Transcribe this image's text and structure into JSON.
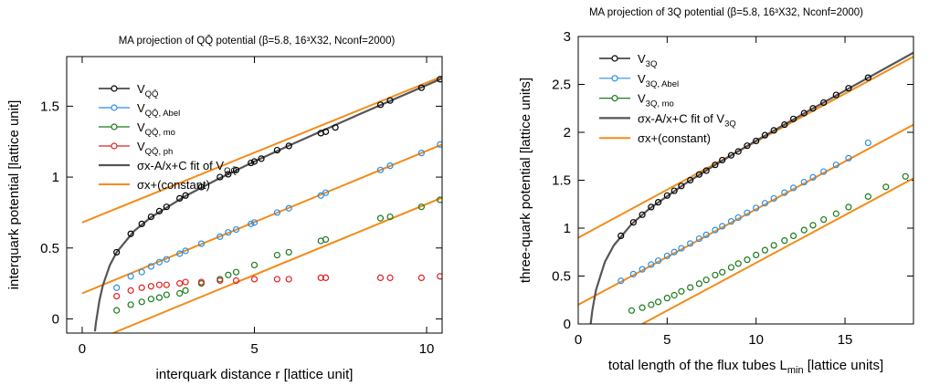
{
  "chart_data": [
    {
      "type": "scatter",
      "title": "MA projection of QQ̄ potential (β=5.8, 16³X32, Nconf=2000)",
      "xlabel": "interquark distance r [lattice unit]",
      "ylabel": "interquark potential [lattice unit]",
      "xlim": [
        -0.45,
        10.45
      ],
      "ylim": [
        -0.1,
        1.85
      ],
      "xticks": [
        0,
        5,
        10
      ],
      "yticks": [
        0,
        0.5,
        1,
        1.5
      ],
      "legend": "upper left",
      "series": [
        {
          "name": "V",
          "subscript": "QQ̄",
          "color": "#000000",
          "x": [
            1,
            1.41,
            1.73,
            2,
            2.24,
            2.45,
            2.83,
            3,
            3.46,
            4,
            4.24,
            4.47,
            4.9,
            5,
            5.2,
            5.66,
            6,
            6.93,
            7.07,
            7.35,
            8.66,
            8.94,
            9.85,
            10.39
          ],
          "values": [
            0.47,
            0.6,
            0.67,
            0.72,
            0.76,
            0.79,
            0.85,
            0.87,
            0.93,
            1.0,
            1.02,
            1.05,
            1.1,
            1.11,
            1.13,
            1.19,
            1.22,
            1.31,
            1.32,
            1.35,
            1.51,
            1.54,
            1.63,
            1.69
          ]
        },
        {
          "name": "V",
          "subscript": "QQ̄, Abel",
          "color": "#2a8ee8",
          "x": [
            1,
            1.41,
            1.73,
            2,
            2.24,
            2.45,
            2.83,
            3,
            3.46,
            4,
            4.24,
            4.47,
            4.9,
            5,
            5.66,
            6,
            6.93,
            7.07,
            8.66,
            8.94,
            9.85,
            10.39
          ],
          "values": [
            0.22,
            0.3,
            0.33,
            0.37,
            0.4,
            0.42,
            0.46,
            0.48,
            0.53,
            0.58,
            0.61,
            0.63,
            0.67,
            0.68,
            0.75,
            0.78,
            0.87,
            0.89,
            1.05,
            1.08,
            1.17,
            1.23
          ]
        },
        {
          "name": "V",
          "subscript": "QQ̄, mo",
          "color": "#1a7a1a",
          "x": [
            1,
            1.41,
            1.73,
            2,
            2.24,
            2.45,
            2.83,
            3,
            3.46,
            4,
            4.24,
            4.47,
            5,
            5.66,
            6,
            6.93,
            7.07,
            8.66,
            8.94,
            9.85,
            10.39
          ],
          "values": [
            0.06,
            0.1,
            0.12,
            0.14,
            0.15,
            0.17,
            0.18,
            0.2,
            0.25,
            0.28,
            0.31,
            0.33,
            0.38,
            0.45,
            0.47,
            0.55,
            0.56,
            0.71,
            0.72,
            0.79,
            0.84
          ]
        },
        {
          "name": "V",
          "subscript": "QQ̄, ph",
          "color": "#e02020",
          "x": [
            1,
            1.41,
            1.73,
            2,
            2.24,
            2.45,
            2.83,
            3,
            3.46,
            4,
            4.47,
            5,
            5.66,
            6,
            6.93,
            7.07,
            8.66,
            8.94,
            9.85,
            10.39
          ],
          "values": [
            0.16,
            0.2,
            0.22,
            0.23,
            0.24,
            0.24,
            0.25,
            0.26,
            0.26,
            0.27,
            0.27,
            0.28,
            0.28,
            0.28,
            0.29,
            0.29,
            0.29,
            0.29,
            0.29,
            0.3
          ]
        }
      ],
      "fit": {
        "name": "σx-A/x+C fit of V",
        "subscript": "QQ̄",
        "color": "#555555",
        "x": [
          0.37,
          0.4,
          0.5,
          0.6,
          0.8,
          1,
          1.5,
          2,
          3,
          4,
          5,
          6,
          8,
          10.45
        ],
        "values": [
          -0.088,
          -0.026,
          0.129,
          0.236,
          0.377,
          0.47,
          0.618,
          0.717,
          0.867,
          0.993,
          1.11,
          1.222,
          1.438,
          1.696
        ]
      },
      "linear": {
        "name": "σx+(constant)",
        "color": "#f28c1a",
        "lines": [
          {
            "x": [
              0,
              10.45
            ],
            "values": [
              0.68,
              1.71
            ]
          },
          {
            "x": [
              0,
              10.45
            ],
            "values": [
              0.18,
              1.23
            ]
          },
          {
            "x": [
              0.9,
              10.45
            ],
            "values": [
              -0.1,
              0.855
            ]
          }
        ]
      }
    },
    {
      "type": "scatter",
      "title": "MA projection of 3Q potential (β=5.8, 16³X32, Nconf=2000)",
      "xlabel": "total length of the flux tubes L",
      "xlabel_subscript": "min",
      "xlabel_end": " [lattice units]",
      "ylabel": "three-quark potential [lattice units]",
      "xlim": [
        0,
        18.85
      ],
      "ylim": [
        0,
        3
      ],
      "xticks": [
        0,
        5,
        10,
        15
      ],
      "yticks": [
        0,
        0.5,
        1,
        1.5,
        2,
        2.5,
        3
      ],
      "legend": "upper left",
      "series": [
        {
          "name": "V",
          "subscript": "3Q",
          "color": "#000000",
          "x": [
            2.4,
            3.1,
            3.6,
            4.1,
            4.5,
            5.0,
            5.4,
            5.8,
            6.3,
            6.8,
            7.2,
            7.7,
            8.1,
            8.6,
            9.0,
            9.5,
            10.0,
            10.5,
            11.0,
            11.6,
            12.1,
            12.7,
            13.2,
            13.8,
            14.5,
            15.2,
            16.3
          ],
          "values": [
            0.92,
            1.06,
            1.14,
            1.22,
            1.27,
            1.34,
            1.39,
            1.44,
            1.5,
            1.56,
            1.6,
            1.66,
            1.71,
            1.76,
            1.8,
            1.86,
            1.91,
            1.97,
            2.02,
            2.08,
            2.14,
            2.2,
            2.25,
            2.31,
            2.39,
            2.46,
            2.57
          ]
        },
        {
          "name": "V",
          "subscript": "3Q, Abel",
          "color": "#2a8ee8",
          "x": [
            2.4,
            3.1,
            3.6,
            4.1,
            4.5,
            5.0,
            5.4,
            5.8,
            6.3,
            6.8,
            7.2,
            7.7,
            8.1,
            8.6,
            9.0,
            9.5,
            10.0,
            10.5,
            11.0,
            11.6,
            12.1,
            12.7,
            13.2,
            13.8,
            14.5,
            15.2,
            16.3
          ],
          "values": [
            0.45,
            0.52,
            0.57,
            0.62,
            0.66,
            0.71,
            0.75,
            0.79,
            0.84,
            0.89,
            0.93,
            0.98,
            1.02,
            1.07,
            1.11,
            1.16,
            1.21,
            1.26,
            1.31,
            1.37,
            1.42,
            1.48,
            1.53,
            1.59,
            1.66,
            1.73,
            1.89
          ]
        },
        {
          "name": "V",
          "subscript": "3Q, mo",
          "color": "#1a7a1a",
          "x": [
            3.0,
            3.6,
            4.1,
            4.5,
            5.0,
            5.4,
            5.8,
            6.3,
            6.8,
            7.2,
            7.7,
            8.1,
            8.6,
            9.0,
            9.5,
            10.0,
            10.5,
            11.0,
            11.6,
            12.1,
            12.7,
            13.2,
            13.8,
            14.5,
            15.2,
            16.3,
            17.3,
            18.4
          ],
          "values": [
            0.14,
            0.17,
            0.2,
            0.23,
            0.27,
            0.3,
            0.34,
            0.38,
            0.42,
            0.46,
            0.51,
            0.54,
            0.59,
            0.63,
            0.67,
            0.72,
            0.77,
            0.82,
            0.87,
            0.92,
            0.98,
            1.03,
            1.09,
            1.15,
            1.22,
            1.33,
            1.43,
            1.54
          ]
        }
      ],
      "fit": {
        "name": "σx-A/x+C fit of V",
        "subscript": "3Q",
        "color": "#555555",
        "x": [
          0.65,
          0.8,
          1,
          1.5,
          2,
          3,
          4,
          6,
          8,
          10,
          13,
          16,
          18.85
        ],
        "values": [
          -0.073,
          0.15,
          0.355,
          0.648,
          0.82,
          1.042,
          1.203,
          1.463,
          1.694,
          1.912,
          2.229,
          2.539,
          2.831
        ]
      },
      "linear": {
        "name": "σx+(constant)",
        "color": "#f28c1a",
        "lines": [
          {
            "x": [
              0,
              18.85
            ],
            "values": [
              0.9,
              2.79
            ]
          },
          {
            "x": [
              0,
              18.85
            ],
            "values": [
              0.2,
              2.08
            ]
          },
          {
            "x": [
              3.6,
              18.85
            ],
            "values": [
              0,
              1.52
            ]
          }
        ]
      }
    }
  ]
}
